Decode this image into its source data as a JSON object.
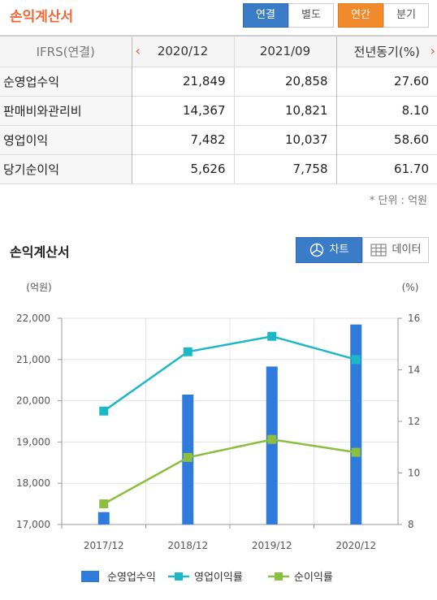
{
  "header": {
    "title": "손익계산서",
    "consolidation_tabs": [
      "연결",
      "별도"
    ],
    "period_tabs": [
      "연간",
      "분기"
    ]
  },
  "table": {
    "label_header": "IFRS(연결)",
    "periods": [
      "2020/12",
      "2021/09",
      "전년동기(%)"
    ],
    "rows": [
      {
        "label": "순영업수익",
        "values": [
          "21,849",
          "20,858",
          "27.60"
        ]
      },
      {
        "label": "판매비와관리비",
        "values": [
          "14,367",
          "10,821",
          "8.10"
        ]
      },
      {
        "label": "영업이익",
        "values": [
          "7,482",
          "10,037",
          "58.60"
        ]
      },
      {
        "label": "당기순이익",
        "values": [
          "5,626",
          "7,758",
          "61.70"
        ]
      }
    ],
    "unit_note": "* 단위 : 억원"
  },
  "chart_section": {
    "title": "손익계산서",
    "chart_button": "차트",
    "data_button": "데이터"
  },
  "chart_data": {
    "type": "bar",
    "categories": [
      "2017/12",
      "2018/12",
      "2019/12",
      "2020/12"
    ],
    "left_axis": {
      "label": "(억원)",
      "range": [
        17000,
        22000
      ],
      "ticks": [
        "17,000",
        "18,000",
        "19,000",
        "20,000",
        "21,000",
        "22,000"
      ]
    },
    "right_axis": {
      "label": "(%)",
      "range": [
        8,
        16
      ],
      "ticks": [
        "8",
        "10",
        "12",
        "14",
        "16"
      ]
    },
    "series": [
      {
        "name": "순영업수익",
        "kind": "bar",
        "axis": "left",
        "color": "#2e7bdb",
        "values": [
          17300,
          20150,
          20830,
          21849
        ]
      },
      {
        "name": "영업이익률",
        "kind": "line",
        "axis": "right",
        "color": "#1cb8c8",
        "values": [
          12.4,
          14.7,
          15.3,
          14.4
        ]
      },
      {
        "name": "순이익률",
        "kind": "line",
        "axis": "right",
        "color": "#8cbf3f",
        "values": [
          8.8,
          10.6,
          11.3,
          10.8
        ]
      }
    ],
    "grid": true,
    "legend": "bottom"
  },
  "colors": {
    "title_orange": "#f0683a",
    "active_blue": "#3a7cc8",
    "active_orange": "#f08a2a"
  }
}
